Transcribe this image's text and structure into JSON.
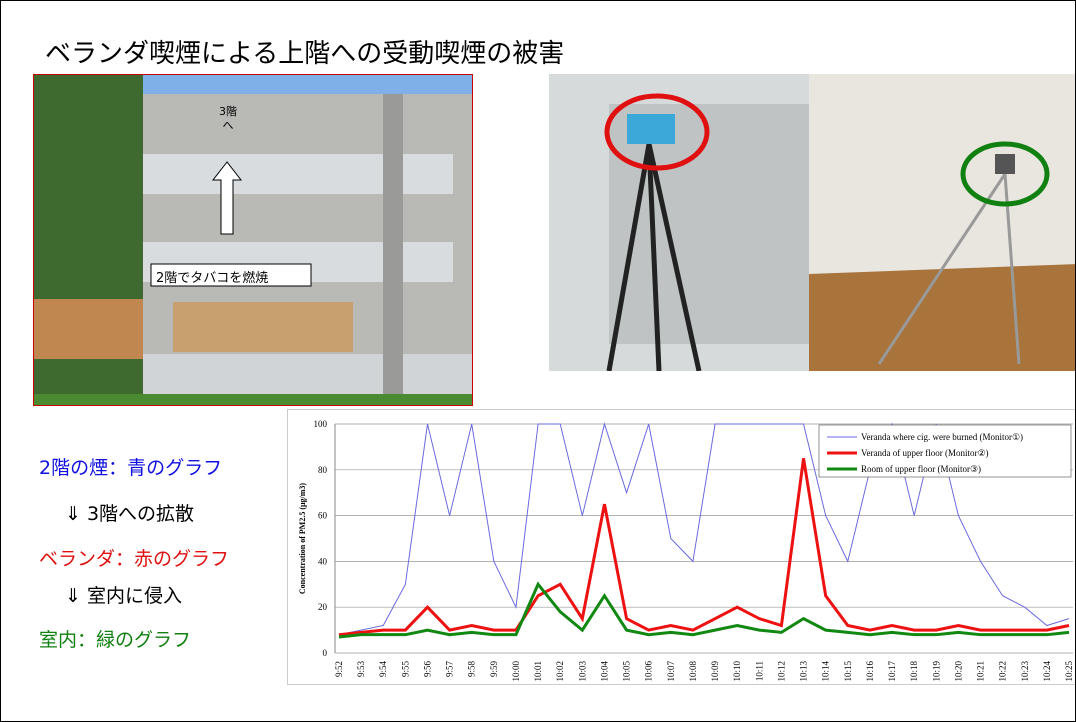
{
  "header": {
    "title": "ベランダ喫煙による上階への受動喫煙の被害"
  },
  "photo1": {
    "arrow_label": "3階へ",
    "box_label": "2階でタバコを燃焼"
  },
  "notes": [
    {
      "text": "2階の煙：青のグラフ",
      "color": "#1010e0"
    },
    {
      "text": "⇓ 3階への拡散",
      "color": "#000000"
    },
    {
      "text": "ベランダ：赤のグラフ",
      "color": "#e01010"
    },
    {
      "text": "⇓ 室内に侵入",
      "color": "#000000"
    },
    {
      "text": "室内：緑のグラフ",
      "color": "#108010"
    }
  ],
  "chart_data": {
    "type": "line",
    "y_label": "Concentration of PM2.5 (μg/m3)",
    "categories": [
      "9:52",
      "9:53",
      "9:54",
      "9:55",
      "9:56",
      "9:57",
      "9:58",
      "9:59",
      "10:00",
      "10:01",
      "10:02",
      "10:03",
      "10:04",
      "10:05",
      "10:06",
      "10:07",
      "10:08",
      "10:09",
      "10:10",
      "10:11",
      "10:12",
      "10:13",
      "10:14",
      "10:15",
      "10:16",
      "10:17",
      "10:18",
      "10:19",
      "10:20",
      "10:21",
      "10:22",
      "10:23",
      "10:24",
      "10:25"
    ],
    "series": [
      {
        "name": "Veranda where cig. were burned (Monitor①)",
        "color": "#6a6ae0",
        "width": 1,
        "values": [
          8,
          10,
          12,
          30,
          100,
          60,
          100,
          40,
          20,
          100,
          100,
          60,
          100,
          70,
          100,
          50,
          40,
          100,
          100,
          100,
          100,
          100,
          60,
          40,
          80,
          100,
          60,
          100,
          60,
          40,
          25,
          20,
          12,
          15
        ]
      },
      {
        "name": "Veranda of upper floor (Monitor②)",
        "color": "#ee1111",
        "width": 3,
        "values": [
          8,
          9,
          10,
          10,
          20,
          10,
          12,
          10,
          10,
          25,
          30,
          15,
          65,
          15,
          10,
          12,
          10,
          15,
          20,
          15,
          12,
          85,
          25,
          12,
          10,
          12,
          10,
          10,
          12,
          10,
          10,
          10,
          10,
          12
        ]
      },
      {
        "name": "Room of upper floor (Monitor③)",
        "color": "#118811",
        "width": 3,
        "values": [
          7,
          8,
          8,
          8,
          10,
          8,
          9,
          8,
          8,
          30,
          18,
          10,
          25,
          10,
          8,
          9,
          8,
          10,
          12,
          10,
          9,
          15,
          10,
          9,
          8,
          9,
          8,
          8,
          9,
          8,
          8,
          8,
          8,
          9
        ]
      }
    ],
    "ylim": [
      0,
      100
    ],
    "yticks": [
      0,
      20,
      40,
      60,
      80,
      100
    ],
    "grid": true
  }
}
